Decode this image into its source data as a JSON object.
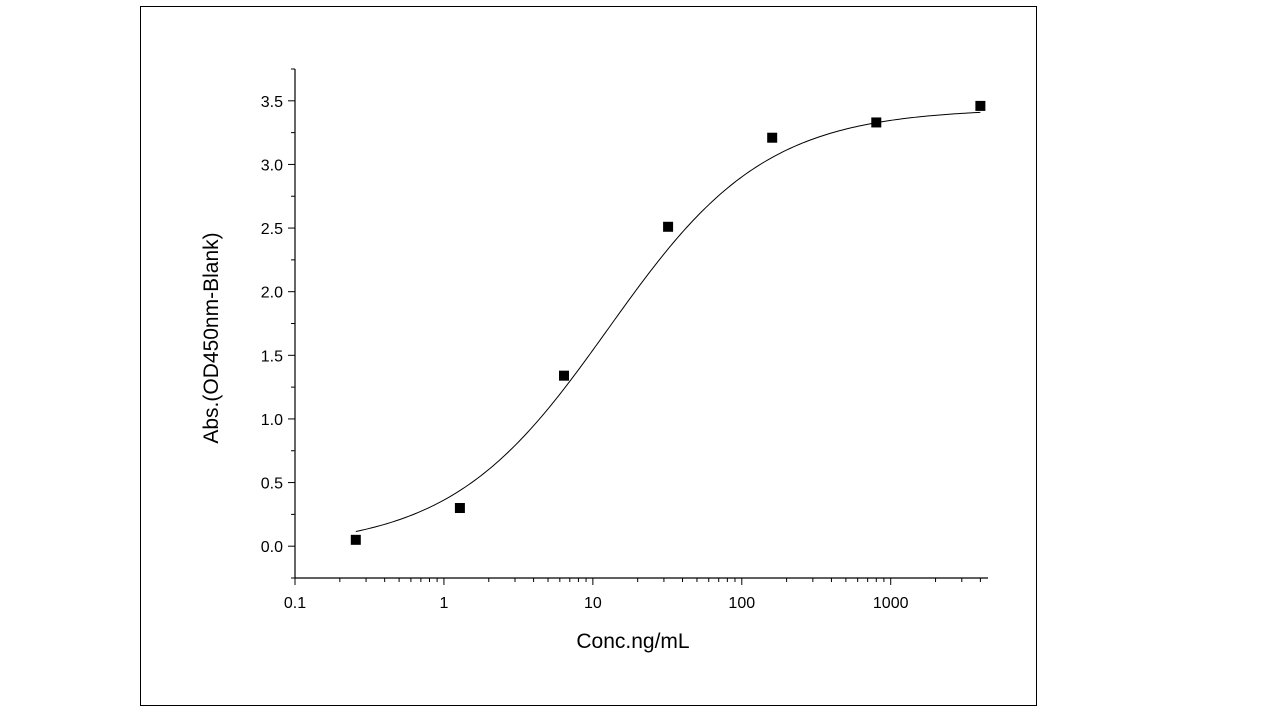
{
  "chart_data": {
    "type": "scatter",
    "title": "",
    "xlabel": "Conc.ng/mL",
    "ylabel": "Abs.(OD450nm-Blank)",
    "x_scale": "log",
    "xlim": [
      0.1,
      4500
    ],
    "ylim": [
      -0.25,
      3.75
    ],
    "x_ticks": [
      0.1,
      1,
      10,
      100,
      1000
    ],
    "x_tick_labels": [
      "0.1",
      "1",
      "10",
      "100",
      "1000"
    ],
    "y_ticks": [
      0.0,
      0.5,
      1.0,
      1.5,
      2.0,
      2.5,
      3.0,
      3.5
    ],
    "y_tick_labels": [
      "0.0",
      "0.5",
      "1.0",
      "1.5",
      "2.0",
      "2.5",
      "3.0",
      "3.5"
    ],
    "grid": false,
    "legend": "none",
    "series": [
      {
        "marker": "square",
        "color": "#000000",
        "x": [
          0.256,
          1.28,
          6.4,
          32,
          160,
          800,
          4000
        ],
        "y": [
          0.05,
          0.3,
          1.34,
          2.51,
          3.21,
          3.33,
          3.46
        ]
      }
    ],
    "fit_curve": {
      "type": "4PL",
      "color": "#000000",
      "params": {
        "bottom": -0.02,
        "top": 3.44,
        "ec50": 12.7,
        "hill": 0.82
      }
    }
  }
}
